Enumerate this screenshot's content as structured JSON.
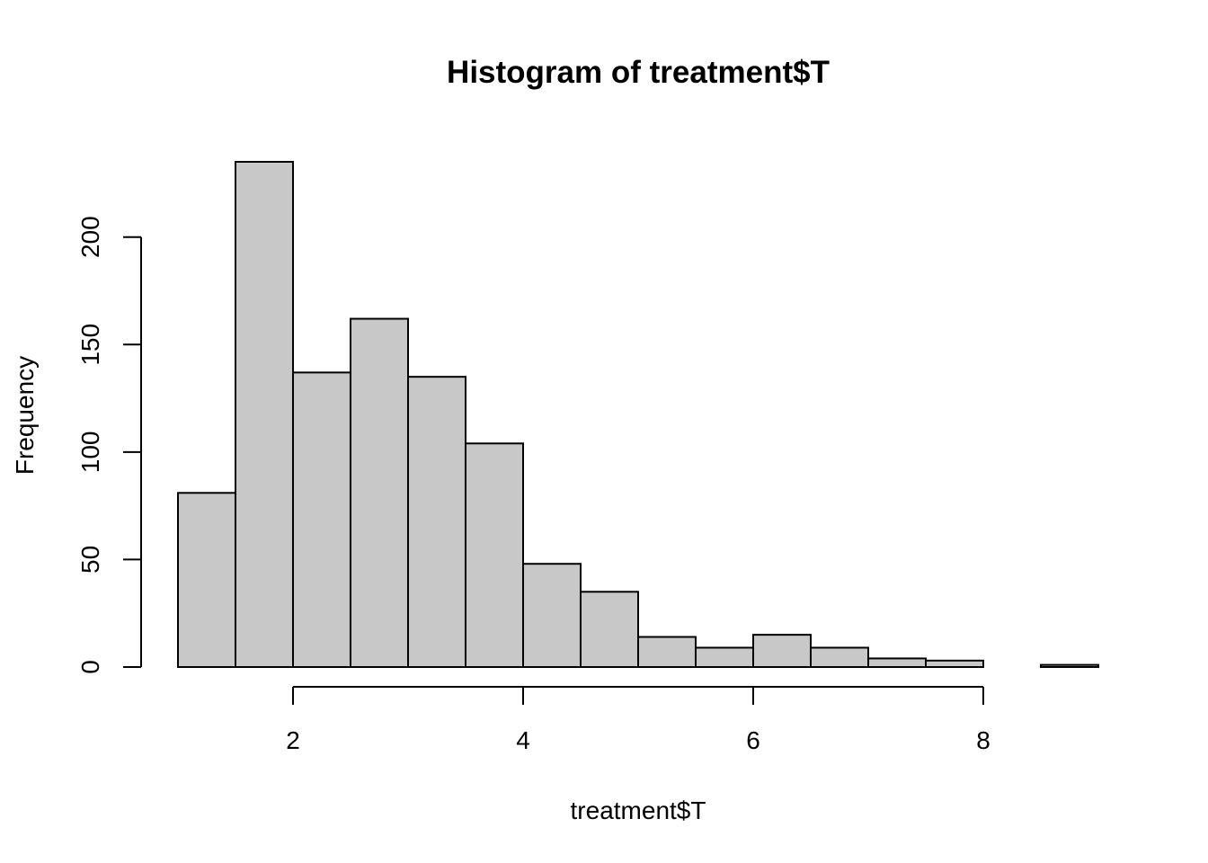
{
  "chart_data": {
    "type": "bar",
    "title": "Histogram of treatment$T",
    "xlabel": "treatment$T",
    "ylabel": "Frequency",
    "bin_edges": [
      1,
      1.5,
      2,
      2.5,
      3,
      3.5,
      4,
      4.5,
      5,
      5.5,
      6,
      6.5,
      7,
      7.5,
      8,
      8.5,
      9
    ],
    "values": [
      81,
      235,
      137,
      162,
      135,
      104,
      48,
      35,
      14,
      9,
      15,
      9,
      4,
      3,
      0,
      1
    ],
    "xlim": [
      1,
      9
    ],
    "ylim": [
      0,
      235
    ],
    "x_ticks": [
      2,
      4,
      6,
      8
    ],
    "y_ticks": [
      0,
      50,
      100,
      150,
      200
    ],
    "bar_color": "#c8c8c8",
    "edge_color": "#000000",
    "grid": false,
    "legend": "none"
  }
}
